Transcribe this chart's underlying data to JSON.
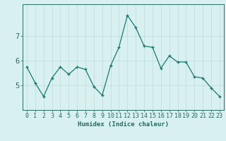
{
  "x": [
    0,
    1,
    2,
    3,
    4,
    5,
    6,
    7,
    8,
    9,
    10,
    11,
    12,
    13,
    14,
    15,
    16,
    17,
    18,
    19,
    20,
    21,
    22,
    23
  ],
  "y": [
    5.75,
    5.1,
    4.55,
    5.3,
    5.75,
    5.45,
    5.75,
    5.65,
    4.95,
    4.6,
    5.8,
    6.55,
    7.85,
    7.35,
    6.6,
    6.55,
    5.7,
    6.2,
    5.95,
    5.95,
    5.35,
    5.3,
    4.9,
    4.55
  ],
  "line_color": "#1a7a6e",
  "marker": "+",
  "bg_color": "#d9f0f0",
  "grid_color": "#c0dede",
  "axis_color": "#2a6a60",
  "xlabel": "Humidex (Indice chaleur)",
  "ylim": [
    4.0,
    8.3
  ],
  "xlim": [
    -0.5,
    23.5
  ],
  "yticks": [
    5,
    6,
    7
  ],
  "xticks": [
    0,
    1,
    2,
    3,
    4,
    5,
    6,
    7,
    8,
    9,
    10,
    11,
    12,
    13,
    14,
    15,
    16,
    17,
    18,
    19,
    20,
    21,
    22,
    23
  ],
  "label_fontsize": 6.5,
  "tick_fontsize": 6.0,
  "ytick_fontsize": 7.5
}
